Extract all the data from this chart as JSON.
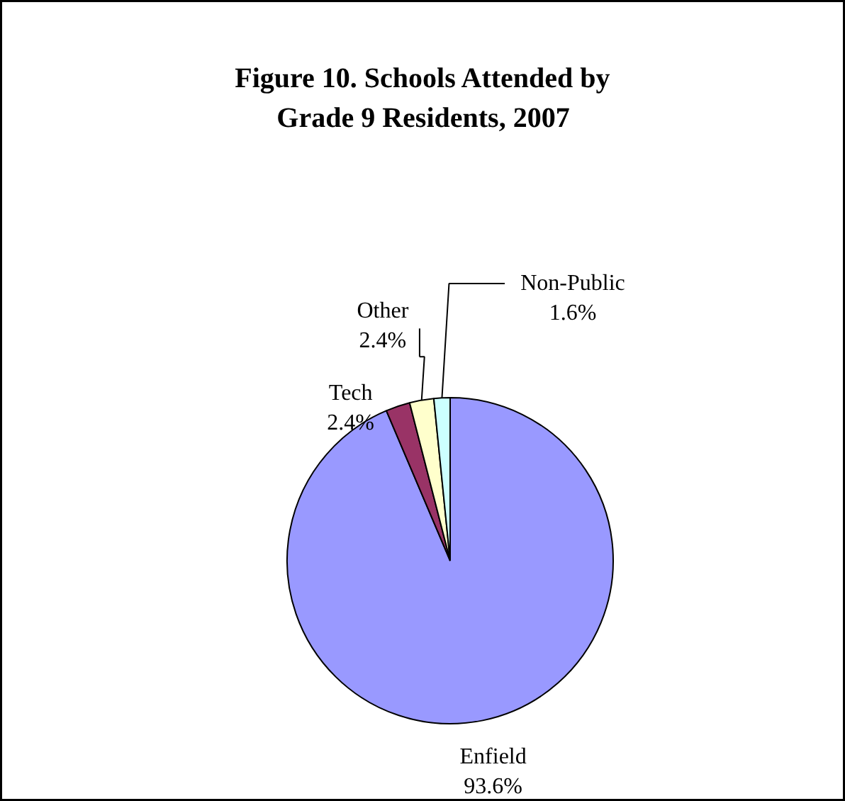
{
  "chart_data": {
    "type": "pie",
    "title": "Figure 10. Schools Attended by Grade 9 Residents, 2007",
    "categories": [
      "Enfield",
      "Tech",
      "Other",
      "Non-Public"
    ],
    "values": [
      93.6,
      2.4,
      2.4,
      1.6
    ],
    "colors": [
      "#9999ff",
      "#993366",
      "#ffffcc",
      "#ccffff"
    ],
    "value_labels": [
      "93.6%",
      "2.4%",
      "2.4%",
      "1.6%"
    ]
  }
}
